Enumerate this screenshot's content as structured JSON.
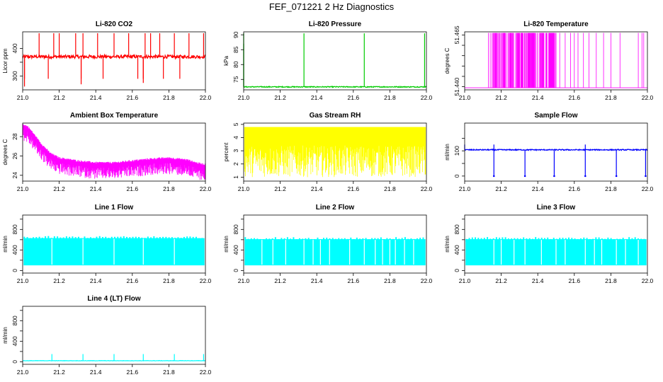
{
  "title": "FEF_071221  2 Hz Diagnostics",
  "chart_data": [
    {
      "type": "line",
      "title": "Li-820 CO2",
      "ylabel": "Licor ppm",
      "color": "#ff0000",
      "xlim": [
        21.0,
        22.0
      ],
      "ylim": [
        250,
        460
      ],
      "xticks": [
        "21.0",
        "21.2",
        "21.4",
        "21.6",
        "21.8",
        "22.0"
      ],
      "yticks": [
        300,
        350,
        400
      ],
      "ytick_labels": [
        "300",
        "",
        "400"
      ],
      "baseline": 370,
      "noise": 6,
      "spikes_up": [
        21.09,
        21.17,
        21.2,
        21.29,
        21.33,
        21.41,
        21.5,
        21.58,
        21.67,
        21.7,
        21.75,
        21.83,
        21.91,
        21.99
      ],
      "spike_up_value": 455,
      "spikes_down": [
        21.01,
        21.14,
        21.32,
        21.44,
        21.63,
        21.66,
        21.77,
        21.86
      ],
      "spike_down_value": 290,
      "extremes": [
        {
          "x": 21.01,
          "y": 262
        },
        {
          "x": 21.32,
          "y": 270
        },
        {
          "x": 21.66,
          "y": 275
        }
      ]
    },
    {
      "type": "line",
      "title": "Li-820 Pressure",
      "ylabel": "kPa",
      "color": "#00cc00",
      "xlim": [
        21.0,
        22.0
      ],
      "ylim": [
        71.5,
        91
      ],
      "xticks": [
        "21.0",
        "21.2",
        "21.4",
        "21.6",
        "21.8",
        "22.0"
      ],
      "yticks": [
        75,
        80,
        85,
        90
      ],
      "ytick_labels": [
        "75",
        "80",
        "85",
        "90"
      ],
      "baseline": 72.5,
      "noise": 0.15,
      "spikes_up": [
        21.0,
        21.33,
        21.66,
        21.99
      ],
      "spike_up_value": 90.5,
      "spikes_down": [],
      "spike_down_value": 72,
      "extremes": [
        {
          "x": 21.0,
          "y": 87
        }
      ]
    },
    {
      "type": "line",
      "title": "Li-820 Temperature",
      "ylabel": "degrees C",
      "color": "#ff00ff",
      "xlim": [
        21.0,
        22.0
      ],
      "ylim": [
        51.4385,
        51.4665
      ],
      "xticks": [
        "21.0",
        "21.2",
        "21.4",
        "21.6",
        "21.8",
        "22.0"
      ],
      "yticks": [
        51.44,
        51.445,
        51.45,
        51.455,
        51.46,
        51.465
      ],
      "ytick_labels": [
        "51.440",
        "",
        "",
        "",
        "",
        "51.465"
      ],
      "low": 51.4395,
      "high": 51.466,
      "toggles": [
        21.13,
        21.14,
        21.15,
        21.17,
        21.19,
        21.2,
        21.22,
        21.24,
        21.26,
        21.28,
        21.3,
        21.31,
        21.32,
        21.33,
        21.34,
        21.35,
        21.36,
        21.37,
        21.38,
        21.39,
        21.4,
        21.41,
        21.43,
        21.45,
        21.47,
        21.49,
        21.5,
        21.52,
        21.55,
        21.58,
        21.6,
        21.62,
        21.65,
        21.68,
        21.72,
        21.76,
        21.8,
        21.85,
        21.95,
        21.97,
        21.98
      ]
    },
    {
      "type": "line",
      "title": "Ambient Box Temperature",
      "ylabel": "degrees C",
      "color": "#ff00ff",
      "xlim": [
        21.0,
        22.0
      ],
      "ylim": [
        23.4,
        29.4
      ],
      "xticks": [
        "21.0",
        "21.2",
        "21.4",
        "21.6",
        "21.8",
        "22.0"
      ],
      "yticks": [
        24,
        26,
        28
      ],
      "ytick_labels": [
        "24",
        "26",
        "28"
      ],
      "curve_x": [
        21.0,
        21.03,
        21.06,
        21.1,
        21.15,
        21.2,
        21.3,
        21.4,
        21.5,
        21.6,
        21.7,
        21.8,
        21.9,
        21.95,
        22.0
      ],
      "curve_y": [
        29.0,
        28.7,
        28.0,
        27.0,
        26.0,
        25.5,
        25.2,
        25.0,
        25.0,
        25.2,
        25.4,
        25.5,
        25.3,
        25.0,
        24.8
      ],
      "drop": 1.2
    },
    {
      "type": "line",
      "title": "Gas Stream RH",
      "ylabel": "percent",
      "color": "#ffff00",
      "xlim": [
        21.0,
        22.0
      ],
      "ylim": [
        0.7,
        5.1
      ],
      "xticks": [
        "21.0",
        "21.2",
        "21.4",
        "21.6",
        "21.8",
        "22.0"
      ],
      "yticks": [
        1,
        2,
        3,
        4,
        5
      ],
      "ytick_labels": [
        "1",
        "2",
        "3",
        "4",
        "5"
      ],
      "band_top": 4.8,
      "band_bottom": 1.0
    },
    {
      "type": "line",
      "title": "Sample Flow",
      "ylabel": "ml/min",
      "color": "#0000ff",
      "xlim": [
        21.0,
        22.0
      ],
      "ylim": [
        -20,
        210
      ],
      "xticks": [
        "21.0",
        "21.2",
        "21.4",
        "21.6",
        "21.8",
        "22.0"
      ],
      "yticks": [
        0,
        50,
        100,
        150
      ],
      "ytick_labels": [
        "0",
        "",
        "100",
        ""
      ],
      "baseline": 104,
      "noise": 2,
      "spikes_up": [
        21.0,
        21.16,
        21.66
      ],
      "spike_up_value": 125,
      "spikes_down": [
        21.16,
        21.33,
        21.49,
        21.66,
        21.83,
        21.99
      ],
      "spike_down_value": 0,
      "extremes": []
    },
    {
      "type": "area",
      "title": "Line 1 Flow",
      "ylabel": "ml/min",
      "color": "#00ffff",
      "xlim": [
        21.0,
        22.0
      ],
      "ylim": [
        -50,
        1080
      ],
      "xticks": [
        "21.0",
        "21.2",
        "21.4",
        "21.6",
        "21.8",
        "22.0"
      ],
      "yticks": [
        0,
        200,
        400,
        600,
        800,
        1000
      ],
      "ytick_labels": [
        "0",
        "",
        "400",
        "",
        "800",
        ""
      ],
      "band_top": 630,
      "band_bottom": 100,
      "gaps": [
        21.16,
        21.33,
        21.5,
        21.66,
        21.83
      ]
    },
    {
      "type": "area",
      "title": "Line 2 Flow",
      "ylabel": "ml/min",
      "color": "#00ffff",
      "xlim": [
        21.0,
        22.0
      ],
      "ylim": [
        -50,
        1080
      ],
      "xticks": [
        "21.0",
        "21.2",
        "21.4",
        "21.6",
        "21.8",
        "22.0"
      ],
      "yticks": [
        0,
        200,
        400,
        600,
        800,
        1000
      ],
      "ytick_labels": [
        "0",
        "",
        "400",
        "",
        "800",
        ""
      ],
      "band_top": 610,
      "band_bottom": 100,
      "gaps": [
        21.1,
        21.16,
        21.23,
        21.33,
        21.38,
        21.42,
        21.47,
        21.58,
        21.66,
        21.72,
        21.76,
        21.8,
        21.83,
        21.88,
        21.93
      ]
    },
    {
      "type": "area",
      "title": "Line 3 Flow",
      "ylabel": "ml/min",
      "color": "#00ffff",
      "xlim": [
        21.0,
        22.0
      ],
      "ylim": [
        -50,
        1080
      ],
      "xticks": [
        "21.0",
        "21.2",
        "21.4",
        "21.6",
        "21.8",
        "22.0"
      ],
      "yticks": [
        0,
        200,
        400,
        600,
        800,
        1000
      ],
      "ytick_labels": [
        "0",
        "",
        "400",
        "",
        "800",
        ""
      ],
      "band_top": 610,
      "band_bottom": 100,
      "gaps": [
        21.16,
        21.2,
        21.27,
        21.33,
        21.42,
        21.5,
        21.55,
        21.66,
        21.71,
        21.75,
        21.83,
        21.88,
        21.95
      ]
    },
    {
      "type": "line",
      "title": "Line 4 (LT) Flow",
      "ylabel": "ml/min",
      "color": "#00ffff",
      "xlim": [
        21.0,
        22.0
      ],
      "ylim": [
        -50,
        1080
      ],
      "xticks": [
        "21.0",
        "21.2",
        "21.4",
        "21.6",
        "21.8",
        "22.0"
      ],
      "yticks": [
        0,
        200,
        400,
        600,
        800,
        1000
      ],
      "ytick_labels": [
        "0",
        "",
        "400",
        "",
        "800",
        ""
      ],
      "baseline": 20,
      "noise": 3,
      "spikes_up": [
        21.16,
        21.33,
        21.5,
        21.66,
        21.83,
        21.99
      ],
      "spike_up_value": 150,
      "spikes_down": [],
      "spike_down_value": 0,
      "extremes": []
    }
  ]
}
